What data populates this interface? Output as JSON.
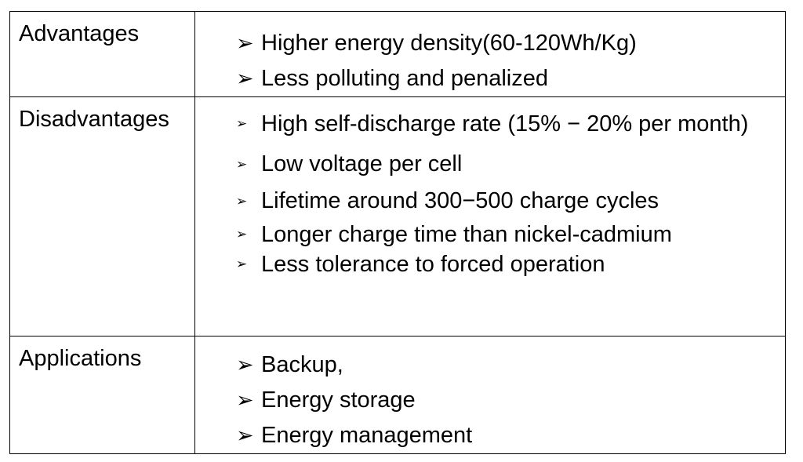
{
  "table": {
    "rows": [
      {
        "label": "Advantages",
        "items": [
          "Higher energy density(60-120Wh/Kg)",
          "Less polluting and penalized"
        ]
      },
      {
        "label": "Disadvantages",
        "items": [
          "High self-discharge rate (15% − 20% per month)",
          "Low voltage per cell",
          "Lifetime around 300−500 charge cycles",
          "Longer charge time than nickel-cadmium",
          "Less tolerance to forced operation"
        ]
      },
      {
        "label": "Applications",
        "items": [
          "Backup,",
          "Energy storage",
          "Energy management"
        ]
      }
    ],
    "bullet_glyph": "➢"
  }
}
